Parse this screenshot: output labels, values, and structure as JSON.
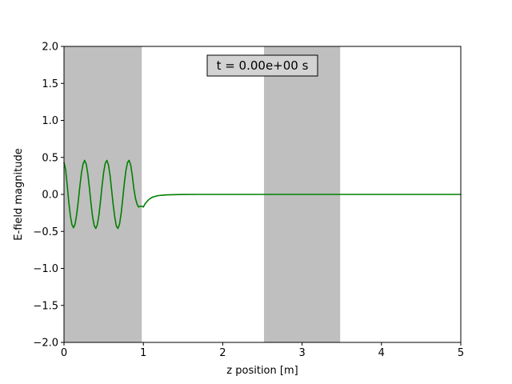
{
  "chart_data": {
    "type": "line",
    "title": "",
    "xlabel": "z position [m]",
    "ylabel": "E-field magnitude",
    "xlim": [
      0,
      5
    ],
    "ylim": [
      -2.0,
      2.0
    ],
    "x_ticks": [
      0,
      1,
      2,
      3,
      4,
      5
    ],
    "x_tick_labels": [
      "0",
      "1",
      "2",
      "3",
      "4",
      "5"
    ],
    "y_ticks": [
      -2.0,
      -1.5,
      -1.0,
      -0.5,
      0.0,
      0.5,
      1.0,
      1.5,
      2.0
    ],
    "y_tick_labels": [
      "−2.0",
      "−1.5",
      "−1.0",
      "−0.5",
      "0.0",
      "0.5",
      "1.0",
      "1.5",
      "2.0"
    ],
    "grid": false,
    "annotation": {
      "text": "t = 0.00e+00 s",
      "background": "#d3d3d3",
      "border": "#000000"
    },
    "shaded_regions": [
      {
        "x_start": 0.0,
        "x_end": 0.98,
        "color": "#bfbfbf"
      },
      {
        "x_start": 2.52,
        "x_end": 3.48,
        "color": "#bfbfbf"
      }
    ],
    "series": [
      {
        "color": "#008000",
        "x": [
          0.0,
          0.02,
          0.04,
          0.06,
          0.08,
          0.1,
          0.12,
          0.14,
          0.16,
          0.18,
          0.2,
          0.22,
          0.24,
          0.26,
          0.28,
          0.3,
          0.32,
          0.34,
          0.36,
          0.38,
          0.4,
          0.42,
          0.44,
          0.46,
          0.48,
          0.5,
          0.52,
          0.54,
          0.56,
          0.58,
          0.6,
          0.62,
          0.64,
          0.66,
          0.68,
          0.7,
          0.72,
          0.74,
          0.76,
          0.78,
          0.8,
          0.82,
          0.84,
          0.86,
          0.88,
          0.9,
          0.92,
          0.94,
          0.96,
          0.98,
          1.0,
          1.02,
          1.05,
          1.08,
          1.11,
          1.14,
          1.17,
          1.2,
          1.25,
          1.3,
          1.4,
          1.5,
          1.7,
          2.0,
          3.0,
          4.0,
          5.0
        ],
        "y": [
          0.43,
          0.34,
          0.13,
          -0.1,
          -0.29,
          -0.41,
          -0.45,
          -0.4,
          -0.27,
          -0.09,
          0.11,
          0.29,
          0.41,
          0.46,
          0.41,
          0.28,
          0.09,
          -0.12,
          -0.3,
          -0.42,
          -0.46,
          -0.41,
          -0.28,
          -0.09,
          0.12,
          0.3,
          0.42,
          0.46,
          0.4,
          0.26,
          0.06,
          -0.14,
          -0.31,
          -0.43,
          -0.46,
          -0.4,
          -0.26,
          -0.06,
          0.15,
          0.32,
          0.43,
          0.46,
          0.4,
          0.26,
          0.08,
          -0.05,
          -0.13,
          -0.17,
          -0.16,
          -0.16,
          -0.17,
          -0.13,
          -0.09,
          -0.06,
          -0.04,
          -0.03,
          -0.02,
          -0.015,
          -0.01,
          -0.006,
          -0.003,
          -0.001,
          0.0,
          0.0,
          0.0,
          0.0,
          0.0
        ]
      }
    ]
  }
}
